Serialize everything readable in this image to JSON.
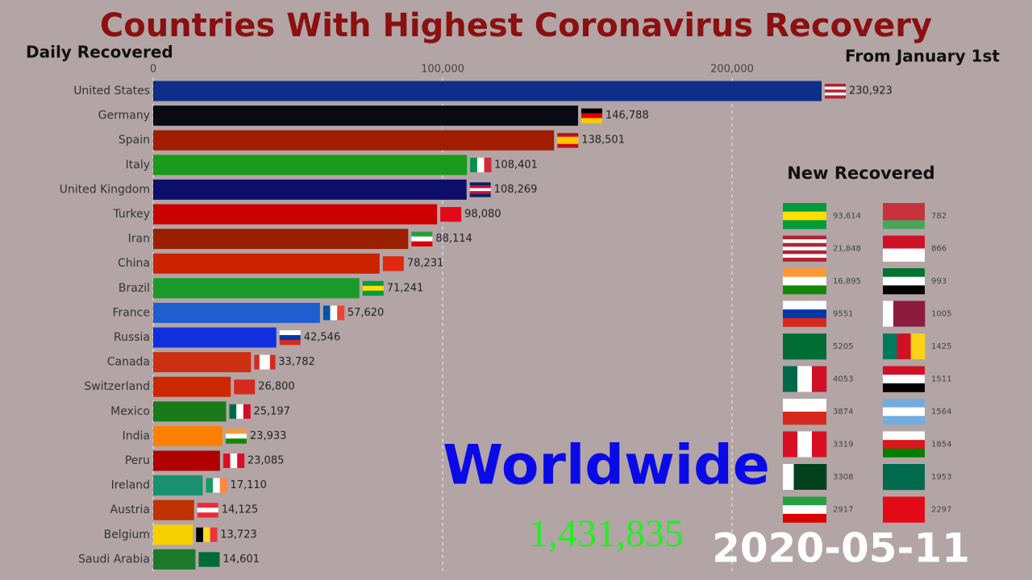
{
  "chart_data": {
    "type": "bar",
    "orientation": "horizontal",
    "title": "Countries With Highest Coronavirus Recovery",
    "value_axis_label": "Daily Recovered",
    "subtitle": "From January 1st",
    "categories": [
      "United States",
      "Germany",
      "Spain",
      "Italy",
      "United Kingdom",
      "Turkey",
      "Iran",
      "China",
      "Brazil",
      "France",
      "Russia",
      "Canada",
      "Switzerland",
      "Mexico",
      "India",
      "Peru",
      "Ireland",
      "Austria",
      "Belgium",
      "Saudi Arabia"
    ],
    "values": [
      230923,
      146788,
      138501,
      108401,
      108269,
      98080,
      88114,
      78231,
      71241,
      57620,
      42546,
      33782,
      26800,
      25197,
      23933,
      23085,
      17110,
      14125,
      13723,
      14601
    ],
    "value_labels": [
      "230,923",
      "146,788",
      "138,501",
      "108,401",
      "108,269",
      "98,080",
      "88,114",
      "78,231",
      "71,241",
      "57,620",
      "42,546",
      "33,782",
      "26,800",
      "25,197",
      "23,933",
      "23,085",
      "17,110",
      "14,125",
      "13,723",
      "14,601"
    ],
    "colors": [
      "#0d2e8a",
      "#0a0a14",
      "#a01d00",
      "#1a9a1a",
      "#0d0d6a",
      "#cc0000",
      "#9a2000",
      "#cc2200",
      "#1a9a2a",
      "#1f5fcf",
      "#1030e0",
      "#cc3010",
      "#cc2800",
      "#1a7a1a",
      "#ff8000",
      "#b00000",
      "#1a9070",
      "#c03000",
      "#f8d000",
      "#1a7a2a"
    ],
    "xlim": [
      0,
      250000
    ],
    "xticks": [
      0,
      {
        "value": 100000,
        "label": "100,000"
      },
      {
        "value": 200000,
        "label": "200,000"
      }
    ],
    "grid": true
  },
  "new_recovered": {
    "title": "New Recovered",
    "left": [
      "93,614",
      "21,848",
      "16,895",
      "9551",
      "5205",
      "4053",
      "3874",
      "3319",
      "3308",
      "2917"
    ],
    "right": [
      "782",
      "866",
      "993",
      "1005",
      "1425",
      "1511",
      "1564",
      "1854",
      "1953",
      "2297"
    ]
  },
  "overlay": {
    "label": "Worldwide",
    "total": "1,431,835",
    "date": "2020-05-11"
  }
}
